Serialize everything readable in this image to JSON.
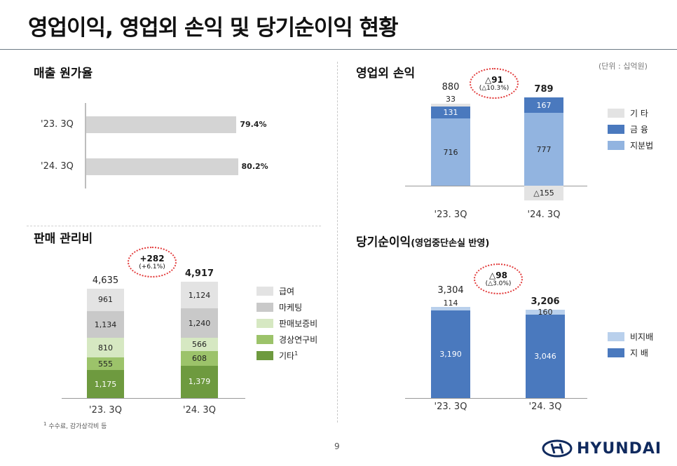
{
  "title": "영업이익, 영업외 손익 및 당기순이익 현황",
  "unit_note": "(단위 : 십억원)",
  "page_number": "9",
  "footnote": {
    "mark": "1",
    "text": "수수료, 감가상각비 등"
  },
  "logo": {
    "text": "HYUNDAI",
    "color": "#102a5e"
  },
  "colors": {
    "gray_light": "#e3e3e3",
    "gray_mid": "#c9c9c9",
    "green_light": "#d6e8c2",
    "green_mid": "#9cc36a",
    "green_dark": "#6e9a3f",
    "blue_light": "#92b4e0",
    "blue_dark": "#4a79be",
    "blue_pale": "#b9d0ec",
    "oval": "#e23b3b",
    "cogs_bar": "#d4d4d4"
  },
  "chart_data": [
    {
      "id": "cogs",
      "type": "bar",
      "orientation": "horizontal",
      "title": "매출 원가율",
      "categories": [
        "'23. 3Q",
        "'24. 3Q"
      ],
      "values": [
        79.4,
        80.2
      ],
      "value_labels": [
        "79.4%",
        "80.2%"
      ],
      "unit": "%"
    },
    {
      "id": "non_operating",
      "type": "bar",
      "stacked": true,
      "title": "영업외 손익",
      "categories": [
        "'23. 3Q",
        "'24. 3Q"
      ],
      "series": [
        {
          "name": "지분법",
          "values": [
            716,
            777
          ],
          "color": "#92b4e0"
        },
        {
          "name": "금 융",
          "values": [
            131,
            167
          ],
          "color": "#4a79be"
        },
        {
          "name": "기 타",
          "values": [
            33,
            -155
          ],
          "labels": [
            "33",
            "△155"
          ],
          "color": "#e3e3e3"
        }
      ],
      "totals": [
        "880",
        "789"
      ],
      "delta": {
        "main": "△91",
        "sub": "(△10.3%)"
      }
    },
    {
      "id": "sga",
      "type": "bar",
      "stacked": true,
      "title": "판매 관리비",
      "categories": [
        "'23. 3Q",
        "'24. 3Q"
      ],
      "series": [
        {
          "name": "기타",
          "sup": "1",
          "values": [
            1175,
            1379
          ],
          "labels": [
            "1,175",
            "1,379"
          ],
          "color": "#6e9a3f"
        },
        {
          "name": "경상연구비",
          "values": [
            555,
            608
          ],
          "labels": [
            "555",
            "608"
          ],
          "color": "#9cc36a"
        },
        {
          "name": "판매보증비",
          "values": [
            810,
            566
          ],
          "labels": [
            "810",
            "566"
          ],
          "color": "#d6e8c2"
        },
        {
          "name": "마케팅",
          "values": [
            1134,
            1240
          ],
          "labels": [
            "1,134",
            "1,240"
          ],
          "color": "#c9c9c9"
        },
        {
          "name": "급여",
          "values": [
            961,
            1124
          ],
          "labels": [
            "961",
            "1,124"
          ],
          "color": "#e3e3e3"
        }
      ],
      "totals": [
        "4,635",
        "4,917"
      ],
      "delta": {
        "main": "+282",
        "sub": "(+6.1%)"
      }
    },
    {
      "id": "net_income",
      "type": "bar",
      "stacked": true,
      "title": "당기순이익",
      "subtitle": "(영업중단손실 반영)",
      "categories": [
        "'23. 3Q",
        "'24. 3Q"
      ],
      "series": [
        {
          "name": "지 배",
          "values": [
            3190,
            3046
          ],
          "labels": [
            "3,190",
            "3,046"
          ],
          "color": "#4a79be"
        },
        {
          "name": "비지배",
          "values": [
            114,
            160
          ],
          "labels": [
            "114",
            "160"
          ],
          "color": "#b9d0ec"
        }
      ],
      "totals": [
        "3,304",
        "3,206"
      ],
      "delta": {
        "main": "△98",
        "sub": "(△3.0%)"
      }
    }
  ]
}
